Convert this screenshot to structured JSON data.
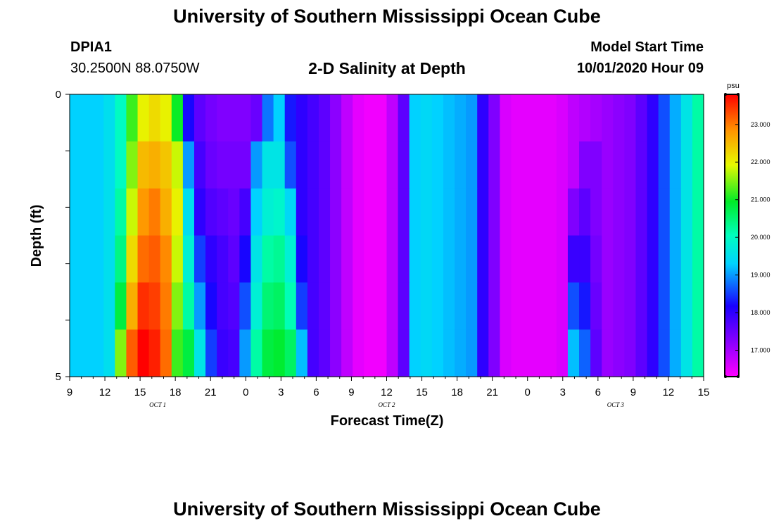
{
  "header": {
    "title": "University of Southern Mississippi Ocean Cube",
    "station": "DPIA1",
    "coords": "30.2500N 88.0750W",
    "subtitle": "2-D Salinity at Depth",
    "model_start_label": "Model Start Time",
    "model_start_value": "10/01/2020 Hour 09"
  },
  "footer": {
    "title": "University of Southern Mississippi Ocean Cube"
  },
  "chart_data": {
    "type": "heatmap",
    "title": "2-D Salinity at Depth",
    "xlabel": "Forecast Time(Z)",
    "ylabel": "Depth (ft)",
    "colorbar_unit": "psu",
    "colorbar_ticks": [
      "17.000",
      "18.000",
      "19.000",
      "20.000",
      "21.000",
      "22.000",
      "23.000"
    ],
    "colorbar_range": [
      16.3,
      23.8
    ],
    "x_ticks": [
      "9",
      "12",
      "15",
      "18",
      "21",
      "0",
      "3",
      "6",
      "9",
      "12",
      "15",
      "18",
      "21",
      "0",
      "3",
      "6",
      "9",
      "12",
      "15"
    ],
    "x_range_hours": [
      0,
      54
    ],
    "date_labels": [
      {
        "text": "OCT 1",
        "hour": 7.5
      },
      {
        "text": "OCT 2",
        "hour": 27
      },
      {
        "text": "OCT 3",
        "hour": 46.5
      }
    ],
    "y_ticks": [
      "0",
      "5"
    ],
    "y_range": [
      0,
      5
    ],
    "depth_levels": [
      0,
      1,
      2,
      3,
      4,
      5
    ],
    "series": [
      {
        "depth": 0,
        "values": [
          19.3,
          19.3,
          19.3,
          19.5,
          20.0,
          21.2,
          22.0,
          22.2,
          22.0,
          21.0,
          18.2,
          17.6,
          17.4,
          17.3,
          17.3,
          17.3,
          17.5,
          18.8,
          19.3,
          18.3,
          18.0,
          17.8,
          17.6,
          17.2,
          16.8,
          16.5,
          16.4,
          16.4,
          16.8,
          17.6,
          19.3,
          19.4,
          19.3,
          19.2,
          19.1,
          19.0,
          18.0,
          17.3,
          16.6,
          16.5,
          16.5,
          16.5,
          16.5,
          16.6,
          16.8,
          16.9,
          17.0,
          17.1,
          17.2,
          17.3,
          17.6,
          18.0,
          18.6,
          19.1,
          19.6,
          20.2
        ]
      },
      {
        "depth": 1,
        "values": [
          19.3,
          19.3,
          19.3,
          19.5,
          20.0,
          21.5,
          22.5,
          22.6,
          22.4,
          21.8,
          19.0,
          17.8,
          17.5,
          17.4,
          17.4,
          17.4,
          19.0,
          19.6,
          19.6,
          18.6,
          18.0,
          17.8,
          17.6,
          17.2,
          16.8,
          16.5,
          16.4,
          16.4,
          16.8,
          17.6,
          19.3,
          19.4,
          19.3,
          19.2,
          19.1,
          19.0,
          18.0,
          17.3,
          16.6,
          16.5,
          16.5,
          16.5,
          16.5,
          16.6,
          16.8,
          17.3,
          17.3,
          17.1,
          17.2,
          17.3,
          17.6,
          18.0,
          18.6,
          19.1,
          19.6,
          20.2
        ]
      },
      {
        "depth": 2,
        "values": [
          19.3,
          19.3,
          19.3,
          19.5,
          20.2,
          21.8,
          22.8,
          23.0,
          22.6,
          22.0,
          19.5,
          18.0,
          17.7,
          17.6,
          17.5,
          17.8,
          19.3,
          19.8,
          19.9,
          19.4,
          18.0,
          17.8,
          17.6,
          17.2,
          16.8,
          16.5,
          16.4,
          16.4,
          16.8,
          17.6,
          19.3,
          19.4,
          19.3,
          19.2,
          19.1,
          19.0,
          18.0,
          17.3,
          16.6,
          16.5,
          16.5,
          16.5,
          16.5,
          16.6,
          17.3,
          17.6,
          17.3,
          17.1,
          17.2,
          17.3,
          17.6,
          18.0,
          18.6,
          19.1,
          19.6,
          20.2
        ]
      },
      {
        "depth": 3,
        "values": [
          19.3,
          19.3,
          19.3,
          19.5,
          20.4,
          22.2,
          23.1,
          23.2,
          22.9,
          21.8,
          19.8,
          18.5,
          18.0,
          17.8,
          17.6,
          18.2,
          19.6,
          20.2,
          20.3,
          19.8,
          18.2,
          17.8,
          17.6,
          17.2,
          16.8,
          16.5,
          16.4,
          16.4,
          16.8,
          17.6,
          19.3,
          19.4,
          19.3,
          19.2,
          19.1,
          19.0,
          18.0,
          17.3,
          16.6,
          16.5,
          16.5,
          16.5,
          16.5,
          16.6,
          17.9,
          17.9,
          17.4,
          17.1,
          17.2,
          17.3,
          17.6,
          18.0,
          18.6,
          19.1,
          19.6,
          20.2
        ]
      },
      {
        "depth": 4,
        "values": [
          19.3,
          19.3,
          19.3,
          19.5,
          20.8,
          22.6,
          23.5,
          23.4,
          23.0,
          21.5,
          20.2,
          19.0,
          18.2,
          17.8,
          17.7,
          18.6,
          19.8,
          20.5,
          20.6,
          20.1,
          18.5,
          17.8,
          17.6,
          17.2,
          16.8,
          16.5,
          16.4,
          16.4,
          16.8,
          17.6,
          19.3,
          19.4,
          19.3,
          19.2,
          19.1,
          19.0,
          18.0,
          17.3,
          16.6,
          16.5,
          16.5,
          16.5,
          16.5,
          16.6,
          18.6,
          18.3,
          17.5,
          17.1,
          17.2,
          17.3,
          17.6,
          18.0,
          18.6,
          19.1,
          19.6,
          20.2
        ]
      },
      {
        "depth": 5,
        "values": [
          19.3,
          19.3,
          19.3,
          19.5,
          21.5,
          23.2,
          23.8,
          23.6,
          23.1,
          21.2,
          20.8,
          19.6,
          18.5,
          17.9,
          17.8,
          19.0,
          20.2,
          20.8,
          20.9,
          20.6,
          19.2,
          17.8,
          17.6,
          17.2,
          16.8,
          16.5,
          16.4,
          16.4,
          16.8,
          17.6,
          19.3,
          19.4,
          19.3,
          19.2,
          19.1,
          19.0,
          18.0,
          17.3,
          16.6,
          16.5,
          16.5,
          16.5,
          16.5,
          16.6,
          19.2,
          18.7,
          17.6,
          17.1,
          17.2,
          17.3,
          17.6,
          18.0,
          18.6,
          19.1,
          19.6,
          20.2
        ]
      }
    ]
  }
}
